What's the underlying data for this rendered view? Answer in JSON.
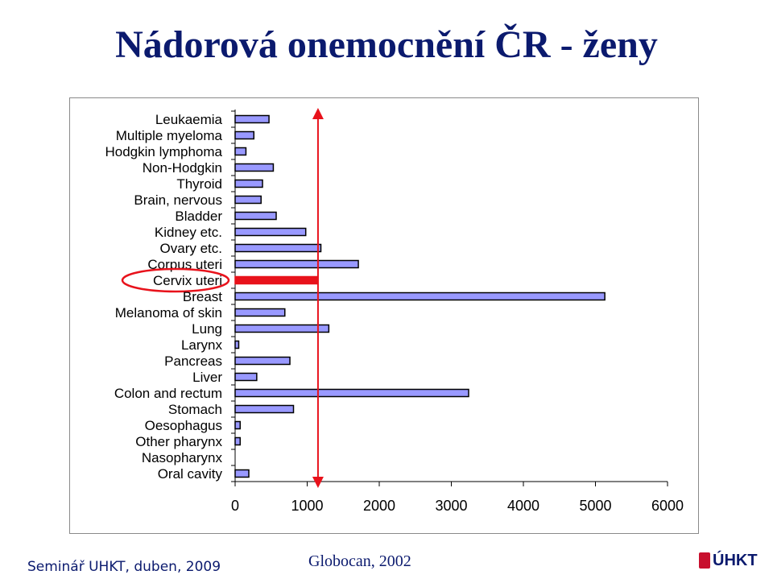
{
  "title": "Nádorová onemocnění ČR - ženy",
  "footer": {
    "left": "Seminář UHKT, duben, 2009",
    "center": "Globocan, 2002",
    "logo": "ÚHKT"
  },
  "colors": {
    "bar": "#9999ff",
    "highlight": "#e8121b",
    "title": "#0b1a6e"
  },
  "chart_data": {
    "type": "bar",
    "orientation": "horizontal",
    "categories": [
      "Leukaemia",
      "Multiple myeloma",
      "Hodgkin lymphoma",
      "Non-Hodgkin",
      "Thyroid",
      "Brain, nervous",
      "Bladder",
      "Kidney etc.",
      "Ovary etc.",
      "Corpus uteri",
      "Cervix uteri",
      "Breast",
      "Melanoma of skin",
      "Lung",
      "Larynx",
      "Pancreas",
      "Liver",
      "Colon and rectum",
      "Stomach",
      "Oesophagus",
      "Other pharynx",
      "Nasopharynx",
      "Oral cavity"
    ],
    "values": [
      470,
      260,
      150,
      530,
      380,
      360,
      570,
      980,
      1190,
      1710,
      1150,
      5130,
      690,
      1300,
      50,
      760,
      300,
      3240,
      810,
      70,
      70,
      0,
      190
    ],
    "highlight_category": "Cervix uteri",
    "reference_line_value": 1150,
    "xlim": [
      0,
      6000
    ],
    "xticks": [
      0,
      1000,
      2000,
      3000,
      4000,
      5000,
      6000
    ],
    "grid": false,
    "legend": false
  }
}
